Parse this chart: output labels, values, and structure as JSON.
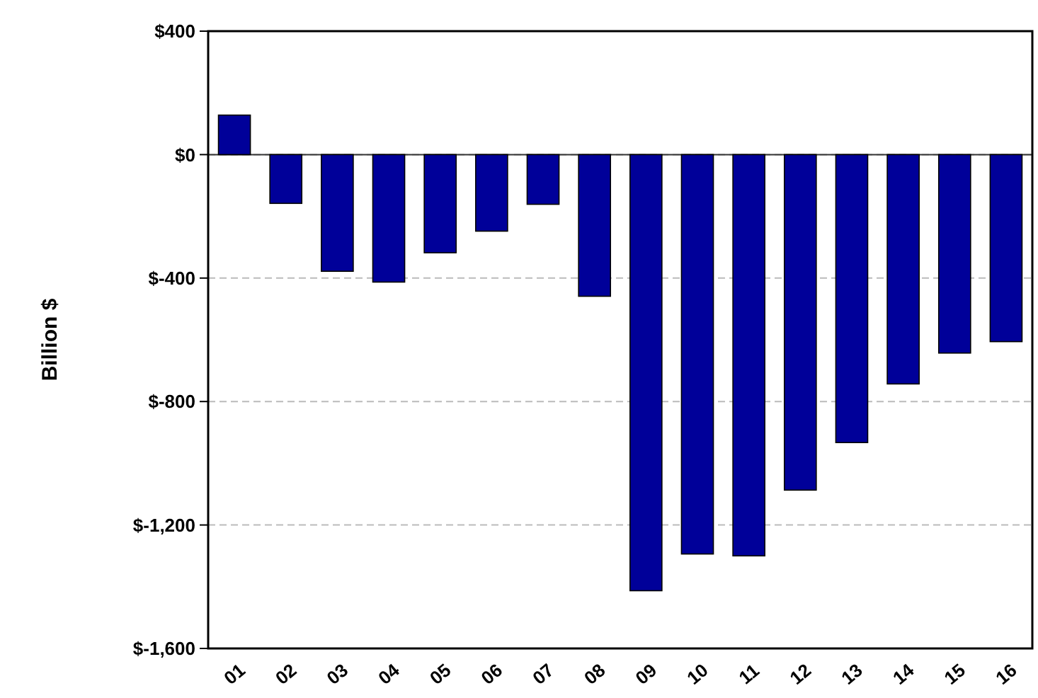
{
  "chart_data": {
    "type": "bar",
    "ylabel": "Billion $",
    "categories": [
      "01",
      "02",
      "03",
      "04",
      "05",
      "06",
      "07",
      "08",
      "09",
      "10",
      "11",
      "12",
      "13",
      "14",
      "15",
      "16"
    ],
    "values": [
      128,
      -158,
      -378,
      -413,
      -318,
      -248,
      -161,
      -459,
      -1413,
      -1294,
      -1300,
      -1087,
      -933,
      -743,
      -643,
      -606
    ],
    "color": "#000099",
    "ylim": [
      -1600,
      400
    ],
    "yticks": [
      {
        "value": 400,
        "label": "$400"
      },
      {
        "value": 0,
        "label": "$0"
      },
      {
        "value": -400,
        "label": "$-400"
      },
      {
        "value": -800,
        "label": "$-800"
      },
      {
        "value": -1200,
        "label": "$-1,200"
      },
      {
        "value": -1600,
        "label": "$-1,600"
      }
    ],
    "grid": "y"
  }
}
